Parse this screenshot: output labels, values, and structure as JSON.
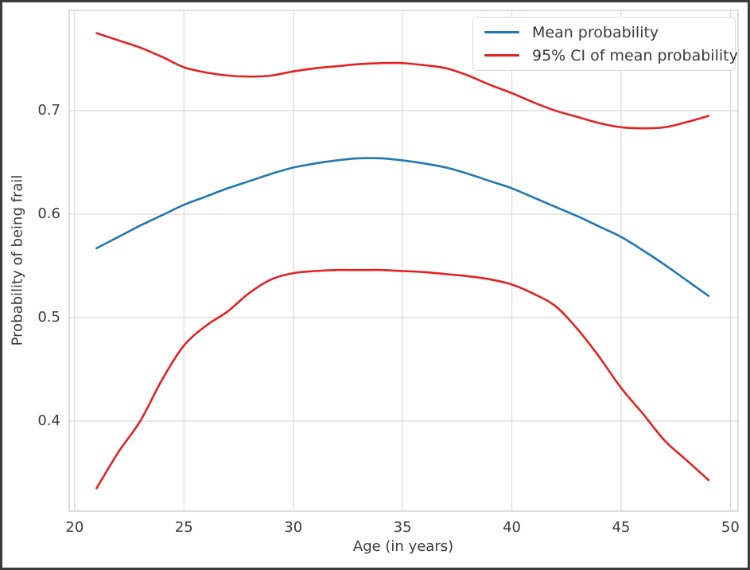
{
  "chart_data": {
    "type": "line",
    "xlabel": "Age (in years)",
    "ylabel": "Probability of being frail",
    "x": [
      21,
      22,
      23,
      24,
      25,
      26,
      27,
      28,
      29,
      30,
      31,
      32,
      33,
      34,
      35,
      36,
      37,
      38,
      39,
      40,
      41,
      42,
      43,
      44,
      45,
      46,
      47,
      48,
      49
    ],
    "series": [
      {
        "name": "Mean probability",
        "role": "mean",
        "color": "#1f77b4",
        "values": [
          0.567,
          0.578,
          0.589,
          0.599,
          0.609,
          0.617,
          0.625,
          0.632,
          0.639,
          0.645,
          0.649,
          0.652,
          0.654,
          0.654,
          0.652,
          0.649,
          0.645,
          0.639,
          0.632,
          0.625,
          0.616,
          0.607,
          0.598,
          0.588,
          0.578,
          0.565,
          0.551,
          0.536,
          0.521
        ]
      },
      {
        "name": "95% CI of mean probability",
        "role": "ci-upper",
        "color": "#e32222",
        "values": [
          0.775,
          0.768,
          0.761,
          0.752,
          0.742,
          0.737,
          0.734,
          0.733,
          0.734,
          0.738,
          0.741,
          0.743,
          0.745,
          0.746,
          0.746,
          0.744,
          0.741,
          0.734,
          0.725,
          0.717,
          0.708,
          0.7,
          0.694,
          0.688,
          0.684,
          0.683,
          0.684,
          0.689,
          0.695
        ]
      },
      {
        "name": "95% CI of mean probability",
        "role": "ci-lower",
        "color": "#e32222",
        "values": [
          0.335,
          0.37,
          0.4,
          0.44,
          0.473,
          0.492,
          0.506,
          0.524,
          0.537,
          0.543,
          0.545,
          0.546,
          0.546,
          0.546,
          0.545,
          0.544,
          0.542,
          0.54,
          0.537,
          0.532,
          0.523,
          0.511,
          0.489,
          0.462,
          0.432,
          0.407,
          0.381,
          0.362,
          0.343
        ]
      }
    ],
    "legend": [
      {
        "label": "Mean probability",
        "color": "#1f77b4"
      },
      {
        "label": "95% CI of mean probability",
        "color": "#e32222"
      }
    ],
    "legend_position": "upper right",
    "grid": true,
    "xticks": [
      20,
      25,
      30,
      35,
      40,
      45,
      50
    ],
    "xtick_labels": [
      "20",
      "25",
      "30",
      "35",
      "40",
      "45",
      "50"
    ],
    "yticks": [
      0.4,
      0.5,
      0.6,
      0.7
    ],
    "ytick_labels": [
      "0.4",
      "0.5",
      "0.6",
      "0.7"
    ],
    "xlim": [
      19.75,
      50.35
    ],
    "ylim": [
      0.313,
      0.797
    ],
    "colors": {
      "grid": "#dcdcdc",
      "spine": "#cfcfcf",
      "text": "#3a3a3a",
      "figure_border": "#3b3b3b"
    }
  }
}
